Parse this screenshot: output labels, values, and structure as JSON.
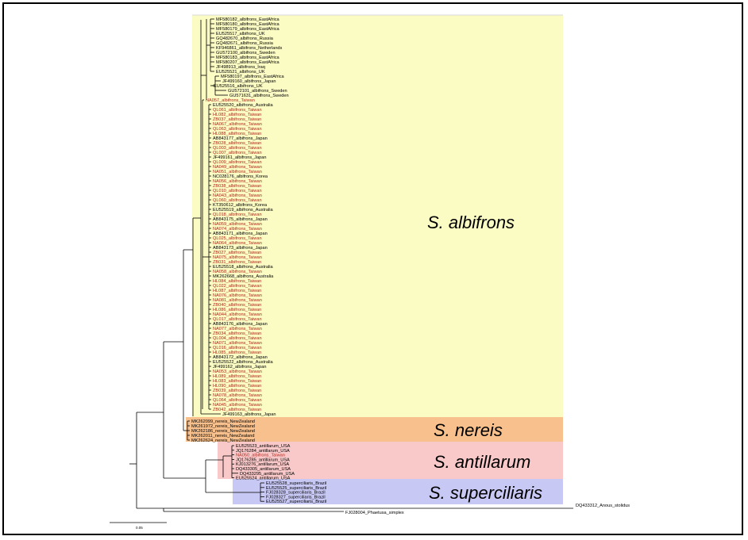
{
  "colors": {
    "albifrons_bg": "#fbfbc4",
    "nereis_bg": "#f8c08c",
    "antillarum_bg": "#f9c8c8",
    "superciliaris_bg": "#c8c8f4",
    "taiwan_text": "#b2261c",
    "default_text": "#000000",
    "branch": "#000000"
  },
  "clades": {
    "albifrons": "S. albifrons",
    "nereis": "S. nereis",
    "antillarum": "S. antillarum",
    "superciliaris": "S. superciliaris"
  },
  "scale_bar_label": "0.05",
  "tips": [
    {
      "label": "MF580182_albifrons_EastAfrica",
      "color": "black",
      "clade": "albifrons"
    },
    {
      "label": "MF580180_albifrons_EastAfrica",
      "color": "black",
      "clade": "albifrons"
    },
    {
      "label": "MF580179_albifrons_EastAfrica",
      "color": "black",
      "clade": "albifrons"
    },
    {
      "label": "EU525517_albifrons_UK",
      "color": "black",
      "clade": "albifrons"
    },
    {
      "label": "GQ482670_albifrons_Russia",
      "color": "black",
      "clade": "albifrons"
    },
    {
      "label": "GQ482671_albifrons_Russia",
      "color": "black",
      "clade": "albifrons"
    },
    {
      "label": "KF946861_albifrons_Netherlands",
      "color": "black",
      "clade": "albifrons"
    },
    {
      "label": "GU572100_albifrons_Sweden",
      "color": "black",
      "clade": "albifrons"
    },
    {
      "label": "MF580183_albifrons_EastAfrica",
      "color": "black",
      "clade": "albifrons"
    },
    {
      "label": "MF580207_albifrons_EastAfrica",
      "color": "black",
      "clade": "albifrons"
    },
    {
      "label": "JF498913_albifrons_Iraq",
      "color": "black",
      "clade": "albifrons"
    },
    {
      "label": "EU525521_albifrons_UK",
      "color": "black",
      "clade": "albifrons"
    },
    {
      "label": "MF580197_albifrons_EastAfrica",
      "color": "black",
      "clade": "albifrons"
    },
    {
      "label": "JF499160_albifrons_Japan",
      "color": "black",
      "clade": "albifrons"
    },
    {
      "label": "EU525516_albifrons_UK",
      "color": "black",
      "clade": "albifrons"
    },
    {
      "label": "GU572101_albifrons_Sweden",
      "color": "black",
      "clade": "albifrons"
    },
    {
      "label": "GU571631_albifrons_Sweden",
      "color": "black",
      "clade": "albifrons"
    },
    {
      "label": "NA057_albifrons_Taiwan",
      "color": "red",
      "clade": "albifrons"
    },
    {
      "label": "EU525520_albifrons_Australia",
      "color": "black",
      "clade": "albifrons"
    },
    {
      "label": "QL061_albifrons_Taiwan",
      "color": "red",
      "clade": "albifrons"
    },
    {
      "label": "HL082_albifrons_Taiwan",
      "color": "red",
      "clade": "albifrons"
    },
    {
      "label": "ZB037_albifrons_Taiwan",
      "color": "red",
      "clade": "albifrons"
    },
    {
      "label": "NA067_albifrons_Taiwan",
      "color": "red",
      "clade": "albifrons"
    },
    {
      "label": "QL063_albifrons_Taiwan",
      "color": "red",
      "clade": "albifrons"
    },
    {
      "label": "HL088_albifrons_Taiwan",
      "color": "red",
      "clade": "albifrons"
    },
    {
      "label": "AB843177_albifrons_Japan",
      "color": "black",
      "clade": "albifrons"
    },
    {
      "label": "ZB028_albifrons_Taiwan",
      "color": "red",
      "clade": "albifrons"
    },
    {
      "label": "QL003_albifrons_Taiwan",
      "color": "red",
      "clade": "albifrons"
    },
    {
      "label": "QL007_albifrons_Taiwan",
      "color": "red",
      "clade": "albifrons"
    },
    {
      "label": "JF499161_albifrons_Japan",
      "color": "black",
      "clade": "albifrons"
    },
    {
      "label": "QL009_albifrons_Taiwan",
      "color": "red",
      "clade": "albifrons"
    },
    {
      "label": "NA049_albifrons_Taiwan",
      "color": "red",
      "clade": "albifrons"
    },
    {
      "label": "NA051_albifrons_Taiwan",
      "color": "red",
      "clade": "albifrons"
    },
    {
      "label": "NC028176_albifrons_Korea",
      "color": "black",
      "clade": "albifrons"
    },
    {
      "label": "NA056_albifrons_Taiwan",
      "color": "red",
      "clade": "albifrons"
    },
    {
      "label": "ZB038_albifrons_Taiwan",
      "color": "red",
      "clade": "albifrons"
    },
    {
      "label": "QL010_albifrons_Taiwan",
      "color": "red",
      "clade": "albifrons"
    },
    {
      "label": "NA043_albifrons_Taiwan",
      "color": "red",
      "clade": "albifrons"
    },
    {
      "label": "QL060_albifrons_Taiwan",
      "color": "red",
      "clade": "albifrons"
    },
    {
      "label": "KT350612_albifrons_Korea",
      "color": "black",
      "clade": "albifrons"
    },
    {
      "label": "EU525519_albifrons_Australia",
      "color": "black",
      "clade": "albifrons"
    },
    {
      "label": "QL018_albifrons_Taiwan",
      "color": "red",
      "clade": "albifrons"
    },
    {
      "label": "AB843175_albifrons_Japan",
      "color": "black",
      "clade": "albifrons"
    },
    {
      "label": "NA059_albifrons_Taiwan",
      "color": "red",
      "clade": "albifrons"
    },
    {
      "label": "NA074_albifrons_Taiwan",
      "color": "red",
      "clade": "albifrons"
    },
    {
      "label": "AB843171_albifrons_Japan",
      "color": "black",
      "clade": "albifrons"
    },
    {
      "label": "QL025_albifrons_Taiwan",
      "color": "red",
      "clade": "albifrons"
    },
    {
      "label": "NA064_albifrons_Taiwan",
      "color": "red",
      "clade": "albifrons"
    },
    {
      "label": "AB843173_albifrons_Japan",
      "color": "black",
      "clade": "albifrons"
    },
    {
      "label": "ZB027_albifrons_Taiwan",
      "color": "red",
      "clade": "albifrons"
    },
    {
      "label": "NA075_albifrons_Taiwan",
      "color": "red",
      "clade": "albifrons"
    },
    {
      "label": "ZB031_albifrons_Taiwan",
      "color": "red",
      "clade": "albifrons"
    },
    {
      "label": "EU525518_albifrons_Australia",
      "color": "black",
      "clade": "albifrons"
    },
    {
      "label": "NA058_albifrons_Taiwan",
      "color": "red",
      "clade": "albifrons"
    },
    {
      "label": "MK262668_albifrons_Australia",
      "color": "black",
      "clade": "albifrons"
    },
    {
      "label": "HL084_albifrons_Taiwan",
      "color": "red",
      "clade": "albifrons"
    },
    {
      "label": "QL022_albifrons_Taiwan",
      "color": "red",
      "clade": "albifrons"
    },
    {
      "label": "HL087_albifrons_Taiwan",
      "color": "red",
      "clade": "albifrons"
    },
    {
      "label": "NA076_albifrons_Taiwan",
      "color": "red",
      "clade": "albifrons"
    },
    {
      "label": "NA081_albifrons_Taiwan",
      "color": "red",
      "clade": "albifrons"
    },
    {
      "label": "ZB040_albifrons_Taiwan",
      "color": "red",
      "clade": "albifrons"
    },
    {
      "label": "HL086_albifrons_Taiwan",
      "color": "red",
      "clade": "albifrons"
    },
    {
      "label": "NA044_albifrons_Taiwan",
      "color": "red",
      "clade": "albifrons"
    },
    {
      "label": "QL017_albifrons_Taiwan",
      "color": "red",
      "clade": "albifrons"
    },
    {
      "label": "AB843176_albifrons_Japan",
      "color": "black",
      "clade": "albifrons"
    },
    {
      "label": "NA077_albifrons_Taiwan",
      "color": "red",
      "clade": "albifrons"
    },
    {
      "label": "ZB034_albifrons_Taiwan",
      "color": "red",
      "clade": "albifrons"
    },
    {
      "label": "QL004_albifrons_Taiwan",
      "color": "red",
      "clade": "albifrons"
    },
    {
      "label": "NA071_albifrons_Taiwan",
      "color": "red",
      "clade": "albifrons"
    },
    {
      "label": "QL016_albifrons_Taiwan",
      "color": "red",
      "clade": "albifrons"
    },
    {
      "label": "HL085_albifrons_Taiwan",
      "color": "red",
      "clade": "albifrons"
    },
    {
      "label": "AB843172_albifrons_Japan",
      "color": "black",
      "clade": "albifrons"
    },
    {
      "label": "EU525522_albifrons_Australia",
      "color": "black",
      "clade": "albifrons"
    },
    {
      "label": "JF499162_albifrons_Japan",
      "color": "black",
      "clade": "albifrons"
    },
    {
      "label": "NA053_albifrons_Taiwan",
      "color": "red",
      "clade": "albifrons"
    },
    {
      "label": "HL089_albifrons_Taiwan",
      "color": "red",
      "clade": "albifrons"
    },
    {
      "label": "HL083_albifrons_Taiwan",
      "color": "red",
      "clade": "albifrons"
    },
    {
      "label": "HL090_albifrons_Taiwan",
      "color": "red",
      "clade": "albifrons"
    },
    {
      "label": "ZB039_albifrons_Taiwan",
      "color": "red",
      "clade": "albifrons"
    },
    {
      "label": "NA078_albifrons_Taiwan",
      "color": "red",
      "clade": "albifrons"
    },
    {
      "label": "QL064_albifrons_Taiwan",
      "color": "red",
      "clade": "albifrons"
    },
    {
      "label": "NA045_albifrons_Taiwan",
      "color": "red",
      "clade": "albifrons"
    },
    {
      "label": "ZB042_albifrons_Taiwan",
      "color": "red",
      "clade": "albifrons"
    },
    {
      "label": "JF499163_albifrons_Japan",
      "color": "black",
      "clade": "albifrons"
    },
    {
      "label": "MK262099_nereis_NewZealand",
      "color": "black",
      "clade": "nereis"
    },
    {
      "label": "MK261972_nereis_NewZealand",
      "color": "black",
      "clade": "nereis"
    },
    {
      "label": "MK262186_nereis_NewZealand",
      "color": "black",
      "clade": "nereis"
    },
    {
      "label": "MK262011_nereis_NewZealand",
      "color": "black",
      "clade": "nereis"
    },
    {
      "label": "MK262624_nereis_NewZealand",
      "color": "black",
      "clade": "nereis"
    },
    {
      "label": "EU525523_antillarum_USA",
      "color": "black",
      "clade": "antillarum"
    },
    {
      "label": "JQ176284_antillarum_USA",
      "color": "black",
      "clade": "antillarum"
    },
    {
      "label": "NA050_albifrons_Taiwan",
      "color": "red",
      "clade": "antillarum"
    },
    {
      "label": "JQ176285_antillarum_USA",
      "color": "black",
      "clade": "antillarum"
    },
    {
      "label": "KJ013276_antillarum_USA",
      "color": "black",
      "clade": "antillarum"
    },
    {
      "label": "DQ433305_antillarum_USA",
      "color": "black",
      "clade": "antillarum"
    },
    {
      "label": "DQ433295_antillarum_USA",
      "color": "black",
      "clade": "antillarum"
    },
    {
      "label": "EU525524_antillarum_USA",
      "color": "black",
      "clade": "antillarum"
    },
    {
      "label": "EU525528_superciliaris_Brazil",
      "color": "black",
      "clade": "superciliaris"
    },
    {
      "label": "EU525525_superciliaris_Brazil",
      "color": "black",
      "clade": "superciliaris"
    },
    {
      "label": "FJ028328_superciliaris_Brazil",
      "color": "black",
      "clade": "superciliaris"
    },
    {
      "label": "FJ028327_superciliaris_Brazil",
      "color": "black",
      "clade": "superciliaris"
    },
    {
      "label": "EU525527_superciliaris_Brazil",
      "color": "black",
      "clade": "superciliaris"
    }
  ],
  "outgroups": {
    "anous": "DQ433312_Anous_stolidus",
    "phaetusa": "FJ028004_Phaetusa_simplex"
  }
}
